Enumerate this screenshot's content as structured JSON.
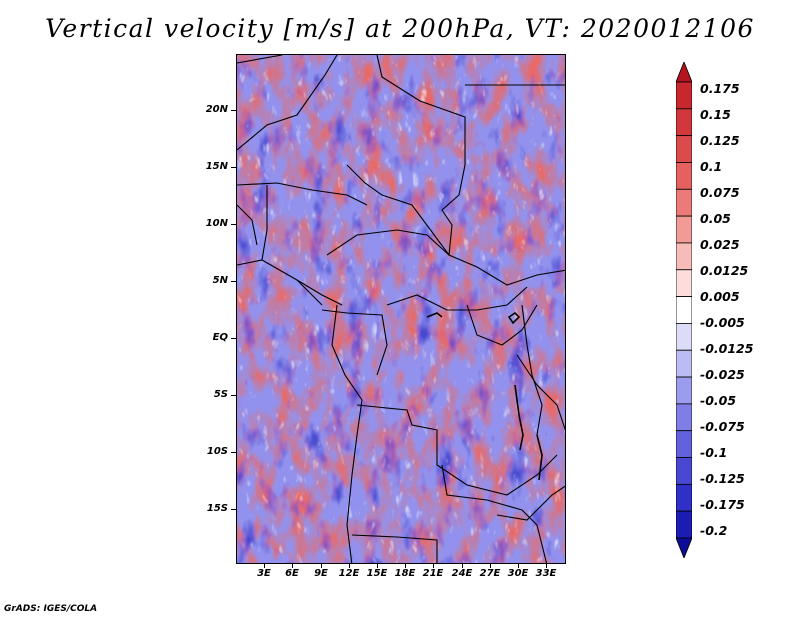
{
  "title": "Vertical velocity [m/s] at 200hPa, VT: 2020012106",
  "map": {
    "y_axis_labels": [
      "20N",
      "15N",
      "10N",
      "5N",
      "EQ",
      "5S",
      "10S",
      "15S"
    ],
    "x_axis_labels": [
      "3E",
      "6E",
      "9E",
      "12E",
      "15E",
      "18E",
      "21E",
      "24E",
      "27E",
      "30E",
      "33E"
    ]
  },
  "colorbar": {
    "labels": [
      "0.175",
      "0.15",
      "0.125",
      "0.1",
      "0.075",
      "0.05",
      "0.025",
      "0.0125",
      "0.005",
      "-0.005",
      "-0.0125",
      "-0.025",
      "-0.05",
      "-0.075",
      "-0.1",
      "-0.125",
      "-0.175",
      "-0.2"
    ],
    "colors": [
      "#b4141e",
      "#c8282d",
      "#d2373c",
      "#dc4b4b",
      "#e4615f",
      "#ec7a78",
      "#f29a96",
      "#f7bcb9",
      "#fbdedc",
      "#ffffff",
      "#dcdcf8",
      "#bcbcf4",
      "#9c9cee",
      "#7e7ee6",
      "#6262de",
      "#4848d4",
      "#3030c8",
      "#1c1cb4",
      "#0c0c96"
    ],
    "over_color": "#b4141e",
    "under_color": "#0c0c96"
  },
  "credit": "GrADS: IGES/COLA"
}
